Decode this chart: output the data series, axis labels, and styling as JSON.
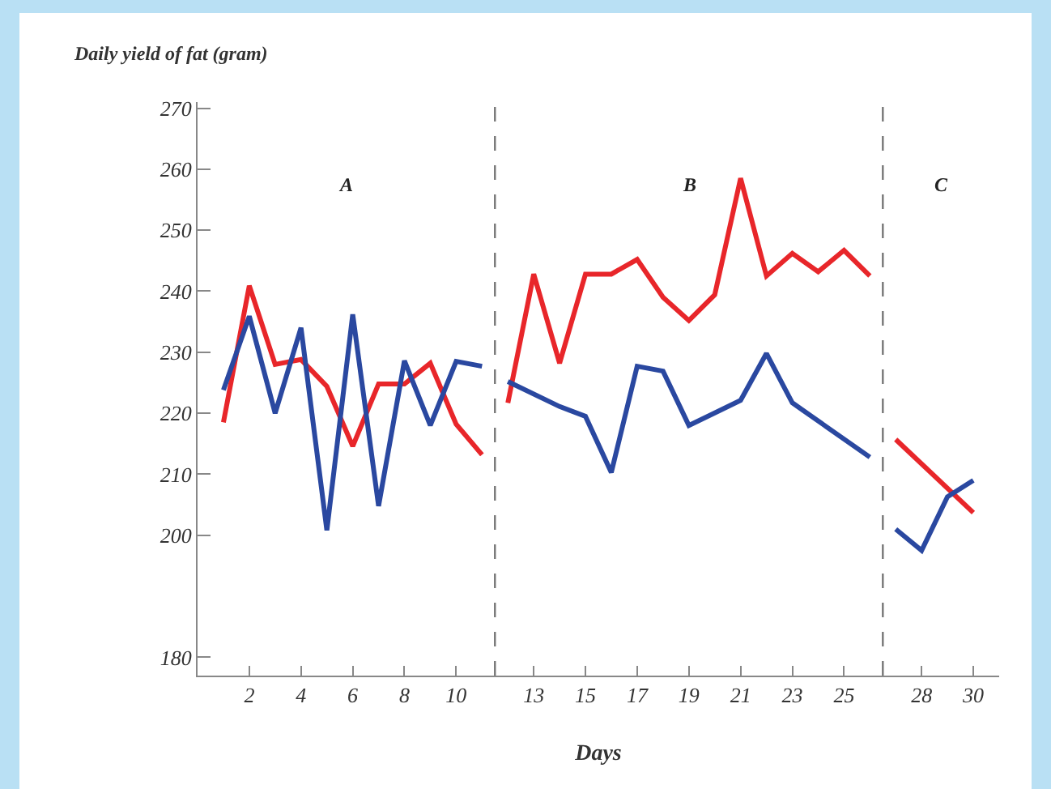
{
  "chart_data": {
    "type": "line",
    "ylabel": "Daily yield of fat (gram)",
    "xlabel": "Days",
    "series": [
      {
        "color": "#e8262a",
        "x": [
          1,
          2,
          3,
          4,
          5,
          6,
          7,
          8,
          9,
          10,
          11,
          11.5,
          12,
          13,
          14,
          15,
          16,
          17,
          18,
          19,
          20,
          21,
          22,
          23,
          24,
          25,
          26,
          26.5,
          27,
          30
        ],
        "values": [
          218.5,
          240.9,
          228,
          228.8,
          224.4,
          214.6,
          224.8,
          224.8,
          228.2,
          218.2,
          213.2,
          null,
          221.7,
          242.8,
          228.2,
          242.8,
          242.8,
          245.2,
          239,
          235.2,
          239.4,
          258.5,
          242.5,
          246.2,
          243.2,
          246.7,
          242.5,
          null,
          215.7,
          203.7
        ]
      },
      {
        "color": "#2a48a0",
        "x": [
          1,
          2,
          3,
          4,
          5,
          6,
          7,
          8,
          9,
          10,
          11,
          11.5,
          12,
          14,
          15,
          16,
          17,
          18,
          19,
          21,
          22,
          23,
          26,
          26.5,
          27,
          28,
          29,
          30
        ],
        "values": [
          223.8,
          235.9,
          220,
          234,
          200.8,
          236.2,
          204.8,
          228.6,
          218,
          228.5,
          227.7,
          null,
          225.2,
          221.1,
          219.5,
          210.3,
          227.7,
          226.9,
          218,
          222.1,
          229.8,
          221.7,
          212.8,
          null,
          201,
          197.5,
          206.3,
          209
        ]
      }
    ],
    "xlim": [
      0,
      31
    ],
    "xticks": [
      2,
      4,
      6,
      8,
      10,
      13,
      15,
      17,
      19,
      21,
      23,
      25,
      28,
      30
    ],
    "ylim": [
      177,
      271
    ],
    "yticks": [
      180,
      200,
      210,
      220,
      230,
      240,
      250,
      260,
      270
    ],
    "ref_lines": [
      {
        "axis": "x",
        "value": 11.5,
        "color": "#777777",
        "line_style": "dashed"
      },
      {
        "axis": "x",
        "value": 26.5,
        "color": "#777777",
        "line_style": "dashed"
      }
    ],
    "annotations": [
      "A",
      "B",
      "C"
    ],
    "grid": false,
    "marker": "none",
    "line_style": "solid"
  }
}
